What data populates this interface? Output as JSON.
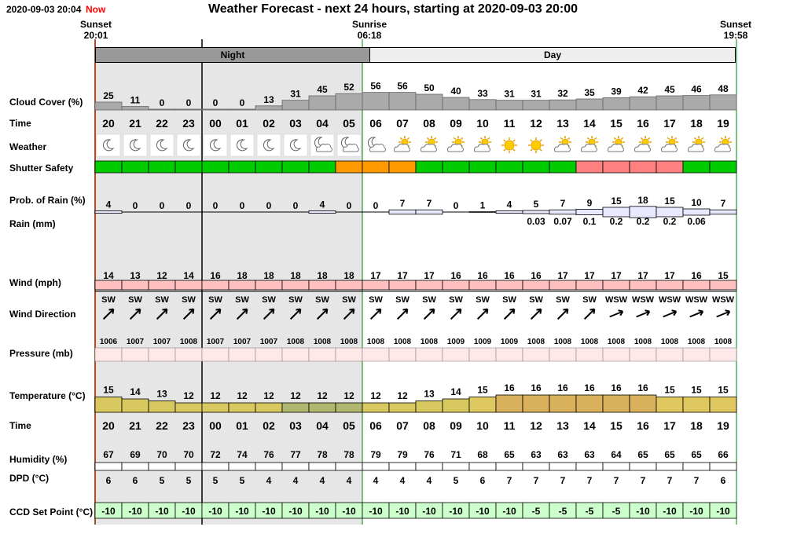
{
  "header": {
    "timestamp": "2020-09-03 20:04",
    "now_label": "Now",
    "title": "Weather Forecast - next 24 hours, starting at 2020-09-03 20:00"
  },
  "events": {
    "sunset_start": {
      "label": "Sunset",
      "time": "20:01"
    },
    "sunrise": {
      "label": "Sunrise",
      "time": "06:18"
    },
    "sunset_end": {
      "label": "Sunset",
      "time": "19:58"
    }
  },
  "bands": {
    "night": "Night",
    "day": "Day"
  },
  "row_labels": {
    "cloud": "Cloud Cover (%)",
    "time": "Time",
    "weather": "Weather",
    "shutter": "Shutter Safety",
    "rain_prob": "Prob. of Rain (%)",
    "rain_mm": "Rain (mm)",
    "wind": "Wind (mph)",
    "wind_dir": "Wind Direction",
    "pressure": "Pressure (mb)",
    "temperature": "Temperature (°C)",
    "time2": "Time",
    "humidity": "Humidity (%)",
    "dpd": "DPD (°C)",
    "ccd": "CCD Set Point (°C)"
  },
  "colors": {
    "night_shade": "#e6e6e6",
    "band_night": "#999999",
    "band_day": "#eeeeee",
    "safe": "#00cc00",
    "caution": "#ff9900",
    "unsafe": "#ff8080",
    "wind_bar": "#ffc0c0",
    "pressure_bar": "#ffe8e8",
    "ccd_bar": "#ccffcc",
    "cloud_bar": "#aaaaaa"
  },
  "hours": [
    "20",
    "21",
    "22",
    "23",
    "00",
    "01",
    "02",
    "03",
    "04",
    "05",
    "06",
    "07",
    "08",
    "09",
    "10",
    "11",
    "12",
    "13",
    "14",
    "15",
    "16",
    "17",
    "18",
    "19"
  ],
  "cloud_cover": [
    25,
    11,
    0,
    0,
    0,
    0,
    13,
    31,
    45,
    52,
    56,
    56,
    50,
    40,
    33,
    31,
    31,
    32,
    35,
    39,
    42,
    45,
    46,
    48
  ],
  "weather_icons": [
    "moon",
    "moon",
    "moon",
    "moon",
    "moon",
    "moon",
    "moon",
    "moon",
    "moon-cloud",
    "moon-cloud",
    "moon-cloud",
    "sun-cloud",
    "sun-cloud",
    "sun-cloud",
    "sun-cloud",
    "sun",
    "sun",
    "sun-cloud",
    "sun-cloud",
    "sun-cloud",
    "sun-cloud",
    "sun-cloud",
    "sun-cloud",
    "sun-cloud"
  ],
  "shutter_safety": [
    "safe",
    "safe",
    "safe",
    "safe",
    "safe",
    "safe",
    "safe",
    "safe",
    "safe",
    "caution",
    "caution",
    "caution",
    "safe",
    "safe",
    "safe",
    "safe",
    "safe",
    "safe",
    "unsafe",
    "unsafe",
    "unsafe",
    "unsafe",
    "safe",
    "safe"
  ],
  "rain_probability": [
    4,
    0,
    0,
    0,
    0,
    0,
    0,
    0,
    4,
    0,
    0,
    7,
    7,
    0,
    1,
    4,
    5,
    7,
    9,
    15,
    18,
    15,
    10,
    7
  ],
  "rain_mm": [
    "",
    "",
    "",
    "",
    "",
    "",
    "",
    "",
    "",
    "",
    "",
    "",
    "",
    "",
    "",
    "",
    "0.03",
    "0.07",
    "0.1",
    "0.2",
    "0.2",
    "0.2",
    "0.06",
    ""
  ],
  "wind_mph": [
    14,
    13,
    12,
    14,
    16,
    18,
    18,
    18,
    18,
    18,
    17,
    17,
    17,
    16,
    16,
    16,
    16,
    17,
    17,
    17,
    17,
    17,
    16,
    15
  ],
  "wind_direction": [
    "SW",
    "SW",
    "SW",
    "SW",
    "SW",
    "SW",
    "SW",
    "SW",
    "SW",
    "SW",
    "SW",
    "SW",
    "SW",
    "SW",
    "SW",
    "SW",
    "SW",
    "SW",
    "SW",
    "WSW",
    "WSW",
    "WSW",
    "WSW",
    "WSW"
  ],
  "pressure_mb": [
    1006,
    1007,
    1007,
    1008,
    1007,
    1007,
    1007,
    1008,
    1008,
    1008,
    1008,
    1008,
    1008,
    1009,
    1009,
    1009,
    1008,
    1008,
    1008,
    1008,
    1008,
    1008,
    1008,
    1008
  ],
  "temperature": [
    15,
    14,
    13,
    12,
    12,
    12,
    12,
    12,
    12,
    12,
    12,
    12,
    13,
    14,
    15,
    16,
    16,
    16,
    16,
    16,
    16,
    15,
    15,
    15
  ],
  "humidity": [
    67,
    69,
    70,
    70,
    72,
    74,
    76,
    77,
    78,
    78,
    79,
    79,
    76,
    71,
    68,
    65,
    63,
    63,
    63,
    64,
    65,
    65,
    65,
    66
  ],
  "dpd": [
    6,
    6,
    5,
    5,
    5,
    5,
    4,
    4,
    4,
    4,
    4,
    4,
    4,
    5,
    6,
    7,
    7,
    7,
    7,
    7,
    7,
    7,
    7,
    6
  ],
  "ccd_set_point": [
    -10,
    -10,
    -10,
    -10,
    -10,
    -10,
    -10,
    -10,
    -10,
    -10,
    -10,
    -10,
    -10,
    -10,
    -10,
    -10,
    -5,
    -5,
    -5,
    -5,
    -10,
    -10,
    -10,
    -10
  ]
}
